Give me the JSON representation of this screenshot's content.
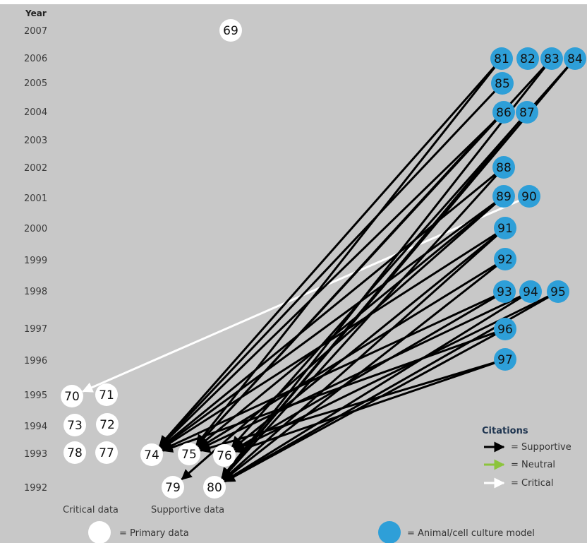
{
  "axis": {
    "title": "Year",
    "years": [
      "2007",
      "2006",
      "2005",
      "2004",
      "2003",
      "2002",
      "2001",
      "2000",
      "1999",
      "1998",
      "1997",
      "1996",
      "1995",
      "1994",
      "1993",
      "1992"
    ]
  },
  "nodes": [
    {
      "id": "69",
      "type": "primary"
    },
    {
      "id": "70",
      "type": "primary"
    },
    {
      "id": "71",
      "type": "primary"
    },
    {
      "id": "72",
      "type": "primary"
    },
    {
      "id": "73",
      "type": "primary"
    },
    {
      "id": "74",
      "type": "primary"
    },
    {
      "id": "75",
      "type": "primary"
    },
    {
      "id": "76",
      "type": "primary"
    },
    {
      "id": "77",
      "type": "primary"
    },
    {
      "id": "78",
      "type": "primary"
    },
    {
      "id": "79",
      "type": "primary"
    },
    {
      "id": "80",
      "type": "primary"
    },
    {
      "id": "81",
      "type": "model"
    },
    {
      "id": "82",
      "type": "model"
    },
    {
      "id": "83",
      "type": "model"
    },
    {
      "id": "84",
      "type": "model"
    },
    {
      "id": "85",
      "type": "model"
    },
    {
      "id": "86",
      "type": "model"
    },
    {
      "id": "87",
      "type": "model"
    },
    {
      "id": "88",
      "type": "model"
    },
    {
      "id": "89",
      "type": "model"
    },
    {
      "id": "90",
      "type": "model"
    },
    {
      "id": "91",
      "type": "model"
    },
    {
      "id": "92",
      "type": "model"
    },
    {
      "id": "93",
      "type": "model"
    },
    {
      "id": "94",
      "type": "model"
    },
    {
      "id": "95",
      "type": "model"
    },
    {
      "id": "96",
      "type": "model"
    },
    {
      "id": "97",
      "type": "model"
    }
  ],
  "edges": [
    {
      "from": "90",
      "to": "70",
      "kind": "critical"
    },
    {
      "from": "81",
      "to": "74",
      "kind": "supportive"
    },
    {
      "from": "81",
      "to": "75",
      "kind": "supportive"
    },
    {
      "from": "83",
      "to": "75",
      "kind": "supportive"
    },
    {
      "from": "83",
      "to": "80",
      "kind": "supportive"
    },
    {
      "from": "84",
      "to": "76",
      "kind": "supportive"
    },
    {
      "from": "84",
      "to": "80",
      "kind": "supportive"
    },
    {
      "from": "85",
      "to": "74",
      "kind": "supportive"
    },
    {
      "from": "86",
      "to": "74",
      "kind": "supportive"
    },
    {
      "from": "86",
      "to": "75",
      "kind": "supportive"
    },
    {
      "from": "87",
      "to": "80",
      "kind": "supportive"
    },
    {
      "from": "88",
      "to": "74",
      "kind": "supportive"
    },
    {
      "from": "88",
      "to": "80",
      "kind": "supportive"
    },
    {
      "from": "89",
      "to": "74",
      "kind": "supportive"
    },
    {
      "from": "89",
      "to": "75",
      "kind": "supportive"
    },
    {
      "from": "89",
      "to": "79",
      "kind": "supportive"
    },
    {
      "from": "91",
      "to": "74",
      "kind": "supportive"
    },
    {
      "from": "91",
      "to": "76",
      "kind": "supportive"
    },
    {
      "from": "91",
      "to": "80",
      "kind": "supportive"
    },
    {
      "from": "92",
      "to": "75",
      "kind": "supportive"
    },
    {
      "from": "92",
      "to": "80",
      "kind": "supportive"
    },
    {
      "from": "93",
      "to": "74",
      "kind": "supportive"
    },
    {
      "from": "93",
      "to": "76",
      "kind": "supportive"
    },
    {
      "from": "94",
      "to": "75",
      "kind": "supportive"
    },
    {
      "from": "94",
      "to": "80",
      "kind": "supportive"
    },
    {
      "from": "95",
      "to": "76",
      "kind": "supportive"
    },
    {
      "from": "95",
      "to": "80",
      "kind": "supportive"
    },
    {
      "from": "96",
      "to": "74",
      "kind": "supportive"
    },
    {
      "from": "96",
      "to": "80",
      "kind": "supportive"
    },
    {
      "from": "97",
      "to": "75",
      "kind": "supportive"
    },
    {
      "from": "97",
      "to": "76",
      "kind": "supportive"
    }
  ],
  "categories": {
    "critical": "Critical data",
    "supportive": "Supportive data"
  },
  "legend": {
    "title": "Citations",
    "supportive": "= Supportive",
    "neutral": "= Neutral",
    "critical": "= Critical",
    "primary": "= Primary data",
    "model": "= Animal/cell culture model"
  },
  "colors": {
    "background": "#c8c8c8",
    "model": "#2e9fd8",
    "primary": "#ffffff",
    "supportive": "#000000",
    "neutral": "#8cc43c",
    "critical": "#ffffff"
  }
}
